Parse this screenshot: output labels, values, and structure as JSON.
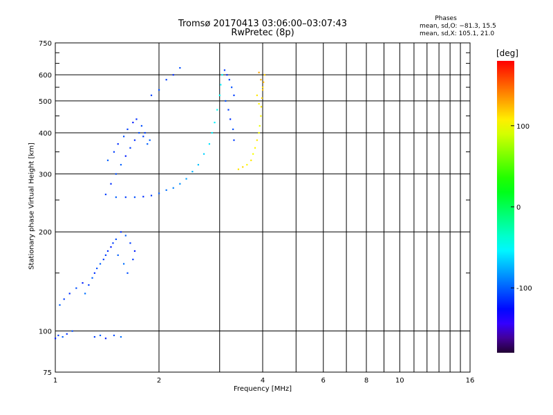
{
  "title_line1": "Tromsø 20170413 03:06:00–03:07:43",
  "title_line2": "RwPretec (8p)",
  "phase_note": {
    "heading": "Phases",
    "line_o": "mean, sd,O: −81.3, 15.5",
    "line_x": "mean, sd,X: 105.1, 21.0"
  },
  "chart_data": {
    "type": "scatter",
    "title": "Tromsø 20170413 03:06:00–03:07:43",
    "subtitle": "RwPretec (8p)",
    "xlabel": "Frequency [MHz]",
    "ylabel": "Stationary phase Virtual Height [km]",
    "x_scale": "log",
    "y_scale": "log",
    "xlim": [
      1,
      16
    ],
    "ylim": [
      75,
      750
    ],
    "x_ticks": [
      1,
      2,
      4,
      6,
      8,
      10,
      16
    ],
    "x_minor_ticks": [
      3,
      5,
      7,
      9,
      11,
      12,
      13,
      14,
      15
    ],
    "y_ticks": [
      75,
      100,
      200,
      300,
      400,
      500,
      600,
      750
    ],
    "y_minor_ticks": [
      150,
      250,
      350,
      450,
      550,
      650,
      700
    ],
    "grid": true,
    "colorbar": {
      "label": "[deg]",
      "ticks": [
        100,
        0,
        -100
      ],
      "range": [
        -180,
        180
      ]
    },
    "series": [
      {
        "description_of_trace": "O-mode echoes (blue), E/F1/F2 layers",
        "points": [
          [
            1.0,
            95,
            -120
          ],
          [
            1.02,
            97,
            -110
          ],
          [
            1.05,
            96,
            -100
          ],
          [
            1.08,
            98,
            -115
          ],
          [
            1.12,
            100,
            -105
          ],
          [
            1.3,
            96,
            -110
          ],
          [
            1.35,
            97,
            -100
          ],
          [
            1.4,
            95,
            -120
          ],
          [
            1.48,
            97,
            -105
          ],
          [
            1.55,
            96,
            -95
          ],
          [
            1.03,
            120,
            -100
          ],
          [
            1.06,
            125,
            -110
          ],
          [
            1.1,
            130,
            -115
          ],
          [
            1.15,
            135,
            -105
          ],
          [
            1.2,
            140,
            -120
          ],
          [
            1.25,
            138,
            -110
          ],
          [
            1.3,
            150,
            -115
          ],
          [
            1.35,
            160,
            -100
          ],
          [
            1.4,
            170,
            -110
          ],
          [
            1.45,
            180,
            -120
          ],
          [
            1.5,
            190,
            -105
          ],
          [
            1.55,
            200,
            -115
          ],
          [
            1.6,
            195,
            -100
          ],
          [
            1.65,
            185,
            -110
          ],
          [
            1.7,
            175,
            -120
          ],
          [
            1.22,
            130,
            -95
          ],
          [
            1.28,
            145,
            -100
          ],
          [
            1.32,
            155,
            -105
          ],
          [
            1.38,
            165,
            -110
          ],
          [
            1.42,
            175,
            -115
          ],
          [
            1.47,
            185,
            -110
          ],
          [
            1.52,
            170,
            -100
          ],
          [
            1.58,
            160,
            -95
          ],
          [
            1.62,
            150,
            -105
          ],
          [
            1.68,
            165,
            -110
          ],
          [
            1.4,
            260,
            -110
          ],
          [
            1.45,
            280,
            -115
          ],
          [
            1.5,
            300,
            -105
          ],
          [
            1.55,
            320,
            -100
          ],
          [
            1.6,
            340,
            -120
          ],
          [
            1.65,
            360,
            -110
          ],
          [
            1.7,
            380,
            -115
          ],
          [
            1.75,
            400,
            -105
          ],
          [
            1.8,
            390,
            -110
          ],
          [
            1.85,
            370,
            -100
          ],
          [
            1.42,
            330,
            -100
          ],
          [
            1.48,
            350,
            -110
          ],
          [
            1.52,
            370,
            -115
          ],
          [
            1.58,
            390,
            -105
          ],
          [
            1.62,
            410,
            -110
          ],
          [
            1.68,
            430,
            -120
          ],
          [
            1.72,
            440,
            -115
          ],
          [
            1.78,
            420,
            -105
          ],
          [
            1.82,
            400,
            -110
          ],
          [
            1.88,
            380,
            -100
          ],
          [
            1.5,
            255,
            -100
          ],
          [
            1.6,
            255,
            -110
          ],
          [
            1.7,
            255,
            -105
          ],
          [
            1.8,
            256,
            -115
          ],
          [
            1.9,
            258,
            -110
          ],
          [
            2.0,
            262,
            -100
          ],
          [
            2.1,
            268,
            -95
          ],
          [
            2.2,
            272,
            -90
          ],
          [
            2.3,
            280,
            -85
          ],
          [
            2.4,
            290,
            -80
          ],
          [
            2.5,
            305,
            -75
          ],
          [
            2.6,
            320,
            -70
          ],
          [
            2.7,
            345,
            -65
          ],
          [
            2.8,
            370,
            -60
          ],
          [
            2.85,
            400,
            -55
          ],
          [
            2.9,
            430,
            -55
          ],
          [
            2.95,
            470,
            -50
          ],
          [
            3.0,
            520,
            -50
          ],
          [
            3.02,
            560,
            -55
          ],
          [
            3.05,
            600,
            -50
          ],
          [
            3.1,
            620,
            -110
          ],
          [
            3.15,
            600,
            -115
          ],
          [
            3.2,
            580,
            -110
          ],
          [
            3.25,
            550,
            -105
          ],
          [
            3.3,
            520,
            -110
          ],
          [
            3.12,
            500,
            -105
          ],
          [
            3.18,
            470,
            -110
          ],
          [
            3.22,
            440,
            -115
          ],
          [
            3.28,
            410,
            -105
          ],
          [
            3.3,
            380,
            -110
          ],
          [
            1.9,
            520,
            -110
          ],
          [
            2.0,
            540,
            -105
          ],
          [
            2.1,
            580,
            -110
          ],
          [
            2.2,
            600,
            -115
          ],
          [
            2.3,
            630,
            -105
          ]
        ]
      },
      {
        "description_of_trace": "X-mode echoes (yellow/orange), F2 trace",
        "points": [
          [
            3.4,
            310,
            110
          ],
          [
            3.5,
            315,
            115
          ],
          [
            3.6,
            320,
            105
          ],
          [
            3.7,
            330,
            110
          ],
          [
            3.75,
            345,
            100
          ],
          [
            3.8,
            360,
            105
          ],
          [
            3.85,
            380,
            110
          ],
          [
            3.9,
            400,
            100
          ],
          [
            3.92,
            420,
            95
          ],
          [
            3.95,
            450,
            105
          ],
          [
            3.96,
            480,
            110
          ],
          [
            3.98,
            510,
            115
          ],
          [
            4.0,
            540,
            120
          ],
          [
            4.02,
            570,
            125
          ],
          [
            4.05,
            600,
            120
          ],
          [
            3.9,
            610,
            130
          ],
          [
            3.95,
            580,
            125
          ],
          [
            4.0,
            550,
            115
          ],
          [
            3.85,
            520,
            110
          ],
          [
            3.9,
            490,
            105
          ]
        ]
      }
    ]
  }
}
